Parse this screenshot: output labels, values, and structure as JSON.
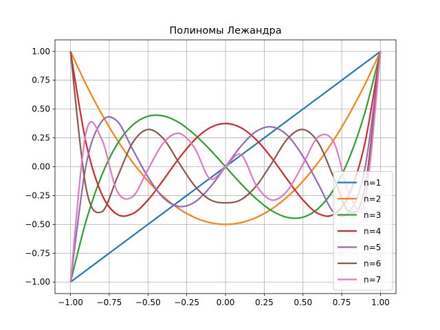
{
  "chart_data": {
    "type": "line",
    "title": "Полиномы Лежандра",
    "xlabel": "",
    "ylabel": "",
    "xlim": [
      -1.1,
      1.1
    ],
    "ylim": [
      -1.1,
      1.1
    ],
    "grid": true,
    "legend_position": "lower-right",
    "x_ticks": [
      -1.0,
      -0.75,
      -0.5,
      -0.25,
      0.0,
      0.25,
      0.5,
      0.75,
      1.0
    ],
    "x_tick_labels": [
      "−1.00",
      "−0.75",
      "−0.50",
      "−0.25",
      "0.00",
      "0.25",
      "0.50",
      "0.75",
      "1.00"
    ],
    "y_ticks": [
      -1.0,
      -0.75,
      -0.5,
      -0.25,
      0.0,
      0.25,
      0.5,
      0.75,
      1.0
    ],
    "y_tick_labels": [
      "−1.00",
      "−0.75",
      "−0.50",
      "−0.25",
      "0.00",
      "0.25",
      "0.50",
      "0.75",
      "1.00"
    ],
    "x": [
      -1.0,
      -0.9,
      -0.8,
      -0.7,
      -0.6,
      -0.5,
      -0.4,
      -0.3,
      -0.2,
      -0.1,
      0.0,
      0.1,
      0.2,
      0.3,
      0.4,
      0.5,
      0.6,
      0.7,
      0.8,
      0.9,
      1.0
    ],
    "series": [
      {
        "name": "n=1",
        "color": "#1f77b4",
        "values": [
          -1.0,
          -0.9,
          -0.8,
          -0.7,
          -0.6,
          -0.5,
          -0.4,
          -0.3,
          -0.2,
          -0.1,
          0.0,
          0.1,
          0.2,
          0.3,
          0.4,
          0.5,
          0.6,
          0.7,
          0.8,
          0.9,
          1.0
        ]
      },
      {
        "name": "n=2",
        "color": "#ff7f0e",
        "values": [
          1.0,
          0.715,
          0.46,
          0.235,
          0.04,
          -0.125,
          -0.26,
          -0.365,
          -0.44,
          -0.485,
          -0.5,
          -0.485,
          -0.44,
          -0.365,
          -0.26,
          -0.125,
          0.04,
          0.235,
          0.46,
          0.715,
          1.0
        ]
      },
      {
        "name": "n=3",
        "color": "#2ca02c",
        "values": [
          -1.0,
          -0.473,
          -0.08,
          0.193,
          0.36,
          0.438,
          0.44,
          0.383,
          0.28,
          0.148,
          0.0,
          -0.148,
          -0.28,
          -0.383,
          -0.44,
          -0.438,
          -0.36,
          -0.193,
          0.08,
          0.473,
          1.0
        ]
      },
      {
        "name": "n=4",
        "color": "#d62728",
        "values": [
          1.0,
          0.208,
          -0.233,
          -0.412,
          -0.408,
          -0.289,
          -0.113,
          0.073,
          0.232,
          0.338,
          0.375,
          0.338,
          0.232,
          0.073,
          -0.113,
          -0.289,
          -0.408,
          -0.412,
          -0.233,
          0.208,
          1.0
        ]
      },
      {
        "name": "n=5",
        "color": "#9467bd",
        "values": [
          -1.0,
          0.011,
          0.39,
          0.397,
          0.153,
          -0.09,
          -0.271,
          -0.345,
          -0.308,
          -0.179,
          0.0,
          0.179,
          0.308,
          0.345,
          0.271,
          0.09,
          -0.153,
          -0.397,
          -0.39,
          -0.011,
          1.0
        ]
      },
      {
        "name": "n=6",
        "color": "#8c564b",
        "values": [
          1.0,
          -0.181,
          -0.392,
          -0.099,
          0.206,
          0.323,
          0.242,
          0.034,
          -0.164,
          -0.286,
          -0.313,
          -0.286,
          -0.164,
          0.034,
          0.242,
          0.323,
          0.206,
          -0.099,
          -0.392,
          -0.181,
          1.0
        ]
      },
      {
        "name": "n=7",
        "color": "#e377c2",
        "values": [
          -1.0,
          0.293,
          0.243,
          -0.209,
          -0.261,
          -0.022,
          0.207,
          0.289,
          0.165,
          -0.104,
          0.0,
          0.104,
          -0.165,
          -0.289,
          -0.207,
          0.022,
          0.261,
          0.209,
          -0.243,
          -0.293,
          1.0
        ]
      }
    ]
  }
}
